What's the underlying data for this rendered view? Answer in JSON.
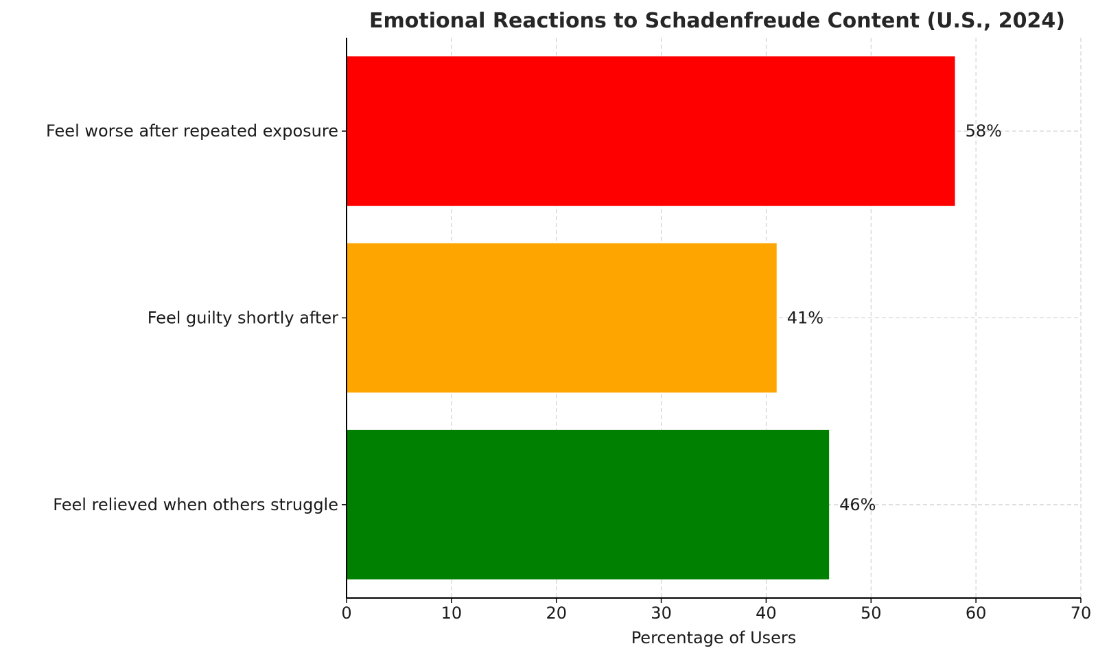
{
  "chart_data": {
    "type": "bar",
    "orientation": "horizontal",
    "title": "Emotional Reactions to Schadenfreude Content (U.S., 2024)",
    "xlabel": "Percentage of Users",
    "ylabel": "",
    "xlim": [
      0,
      70
    ],
    "xticks": [
      0,
      10,
      20,
      30,
      40,
      50,
      60,
      70
    ],
    "grid": true,
    "categories": [
      "Feel worse after repeated exposure",
      "Feel guilty shortly after",
      "Feel relieved when others struggle"
    ],
    "values": [
      58,
      41,
      46
    ],
    "data_labels": [
      "58%",
      "41%",
      "46%"
    ],
    "colors": [
      "#ff0000",
      "#ffa500",
      "#008000"
    ]
  }
}
